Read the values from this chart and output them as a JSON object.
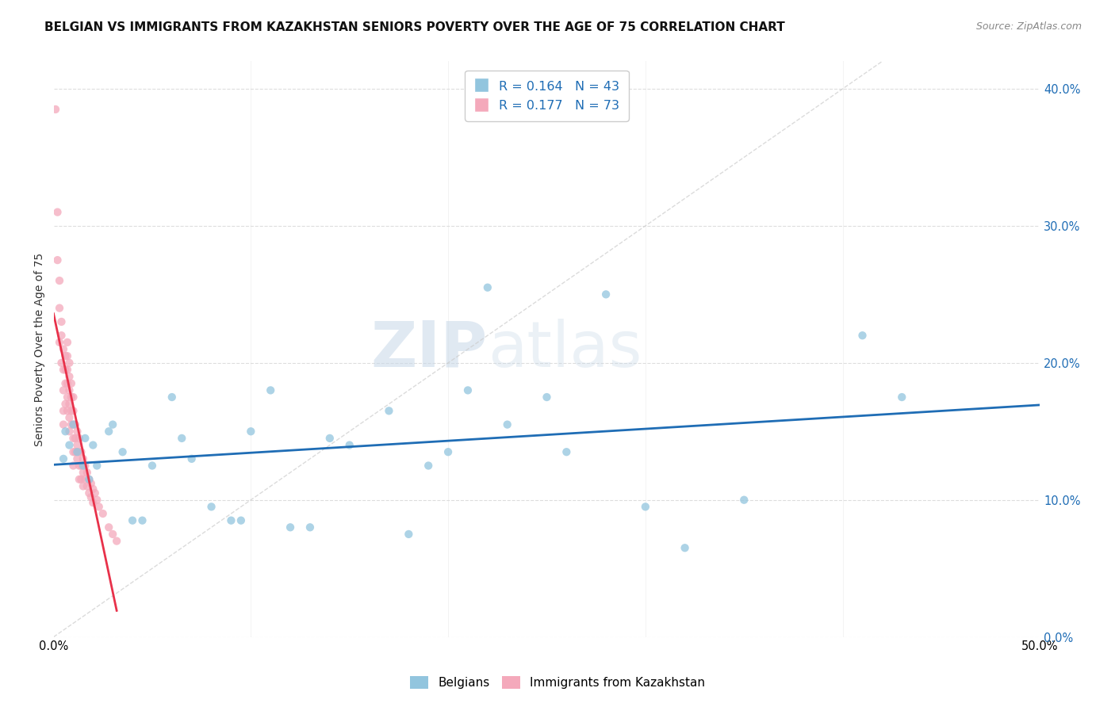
{
  "title": "BELGIAN VS IMMIGRANTS FROM KAZAKHSTAN SENIORS POVERTY OVER THE AGE OF 75 CORRELATION CHART",
  "source": "Source: ZipAtlas.com",
  "ylabel": "Seniors Poverty Over the Age of 75",
  "xlim": [
    0.0,
    0.5
  ],
  "ylim": [
    0.0,
    0.42
  ],
  "x_ticks": [
    0.0,
    0.1,
    0.2,
    0.3,
    0.4,
    0.5
  ],
  "x_tick_labels": [
    "0.0%",
    "",
    "",
    "",
    "",
    "50.0%"
  ],
  "y_ticks": [
    0.0,
    0.1,
    0.2,
    0.3,
    0.4
  ],
  "y_tick_labels_left": [
    "",
    "",
    "",
    "",
    ""
  ],
  "y_tick_labels_right": [
    "0.0%",
    "10.0%",
    "20.0%",
    "30.0%",
    "40.0%"
  ],
  "legend_r1": "R = 0.164",
  "legend_n1": "N = 43",
  "legend_r2": "R = 0.177",
  "legend_n2": "N = 73",
  "color_blue": "#92c5de",
  "color_pink": "#f4a9bb",
  "line_color_blue": "#1f6db5",
  "line_color_pink": "#e8314a",
  "legend_label1": "Belgians",
  "legend_label2": "Immigrants from Kazakhstan",
  "watermark_zip": "ZIP",
  "watermark_atlas": "atlas",
  "belgians_x": [
    0.005,
    0.006,
    0.008,
    0.01,
    0.012,
    0.015,
    0.016,
    0.018,
    0.02,
    0.022,
    0.028,
    0.03,
    0.035,
    0.04,
    0.045,
    0.05,
    0.06,
    0.065,
    0.07,
    0.08,
    0.09,
    0.095,
    0.1,
    0.11,
    0.12,
    0.13,
    0.14,
    0.15,
    0.17,
    0.18,
    0.19,
    0.2,
    0.21,
    0.22,
    0.23,
    0.25,
    0.26,
    0.28,
    0.3,
    0.32,
    0.35,
    0.41,
    0.43
  ],
  "belgians_y": [
    0.13,
    0.15,
    0.14,
    0.155,
    0.135,
    0.125,
    0.145,
    0.115,
    0.14,
    0.125,
    0.15,
    0.155,
    0.135,
    0.085,
    0.085,
    0.125,
    0.175,
    0.145,
    0.13,
    0.095,
    0.085,
    0.085,
    0.15,
    0.18,
    0.08,
    0.08,
    0.145,
    0.14,
    0.165,
    0.075,
    0.125,
    0.135,
    0.18,
    0.255,
    0.155,
    0.175,
    0.135,
    0.25,
    0.095,
    0.065,
    0.1,
    0.22,
    0.175
  ],
  "kazakh_x": [
    0.001,
    0.002,
    0.002,
    0.003,
    0.003,
    0.003,
    0.004,
    0.004,
    0.004,
    0.005,
    0.005,
    0.005,
    0.005,
    0.005,
    0.006,
    0.006,
    0.006,
    0.006,
    0.007,
    0.007,
    0.007,
    0.007,
    0.007,
    0.007,
    0.008,
    0.008,
    0.008,
    0.008,
    0.008,
    0.008,
    0.009,
    0.009,
    0.009,
    0.009,
    0.01,
    0.01,
    0.01,
    0.01,
    0.01,
    0.01,
    0.011,
    0.011,
    0.011,
    0.012,
    0.012,
    0.012,
    0.013,
    0.013,
    0.013,
    0.013,
    0.014,
    0.014,
    0.014,
    0.015,
    0.015,
    0.015,
    0.016,
    0.016,
    0.017,
    0.017,
    0.018,
    0.018,
    0.019,
    0.019,
    0.02,
    0.02,
    0.021,
    0.022,
    0.023,
    0.025,
    0.028,
    0.03,
    0.032
  ],
  "kazakh_y": [
    0.385,
    0.31,
    0.275,
    0.26,
    0.24,
    0.215,
    0.23,
    0.22,
    0.2,
    0.21,
    0.195,
    0.18,
    0.165,
    0.155,
    0.205,
    0.195,
    0.185,
    0.17,
    0.215,
    0.205,
    0.195,
    0.185,
    0.175,
    0.165,
    0.2,
    0.19,
    0.18,
    0.17,
    0.16,
    0.15,
    0.185,
    0.175,
    0.165,
    0.155,
    0.175,
    0.165,
    0.155,
    0.145,
    0.135,
    0.125,
    0.155,
    0.145,
    0.135,
    0.15,
    0.14,
    0.13,
    0.145,
    0.135,
    0.125,
    0.115,
    0.135,
    0.125,
    0.115,
    0.13,
    0.12,
    0.11,
    0.125,
    0.115,
    0.12,
    0.11,
    0.115,
    0.105,
    0.112,
    0.102,
    0.108,
    0.098,
    0.105,
    0.1,
    0.095,
    0.09,
    0.08,
    0.075,
    0.07
  ],
  "background_color": "#ffffff",
  "grid_color": "#dddddd",
  "title_fontsize": 11,
  "axis_fontsize": 10,
  "tick_fontsize": 10.5,
  "dot_size": 55,
  "dot_alpha": 0.75
}
